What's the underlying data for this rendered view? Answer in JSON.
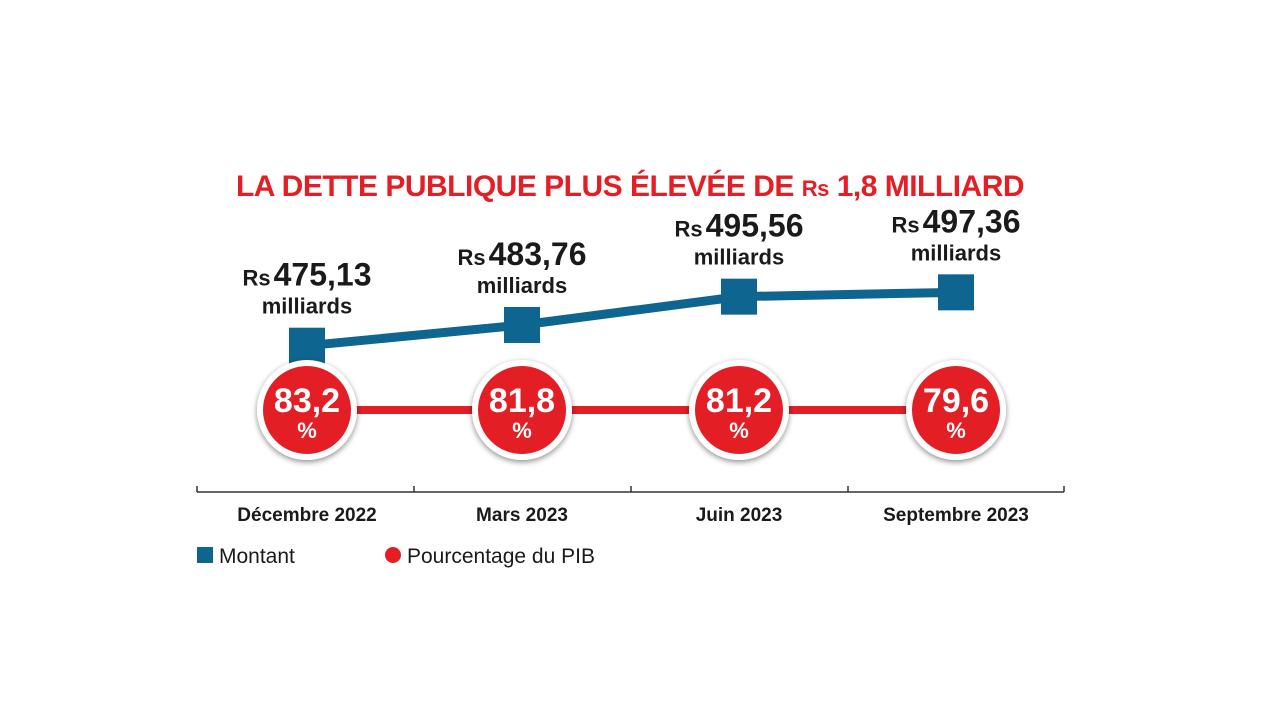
{
  "colors": {
    "title": "#e31e24",
    "amount": "#0e6590",
    "percent": "#e31e24",
    "text": "#1a1a1a",
    "axis": "#333333"
  },
  "chart_data": {
    "type": "line",
    "title": "LA DETTE PUBLIQUE PLUS ÉLEVÉE DE Rs 1,8 MILLIARD",
    "title_parts": {
      "before": "LA DETTE PUBLIQUE PLUS ÉLEVÉE DE ",
      "currency": "Rs",
      "after": " 1,8 MILLIARD"
    },
    "categories": [
      "Décembre 2022",
      "Mars 2023",
      "Juin 2023",
      "Septembre 2023"
    ],
    "series": [
      {
        "name": "Montant",
        "marker": "square",
        "currency": "Rs",
        "unit": "milliards",
        "values": [
          475.13,
          483.76,
          495.56,
          497.36
        ],
        "labels": [
          "475,13",
          "483,76",
          "495,56",
          "497,36"
        ]
      },
      {
        "name": "Pourcentage du PIB",
        "marker": "circle",
        "unit": "%",
        "values": [
          83.2,
          81.8,
          81.2,
          79.6
        ],
        "labels": [
          "83,2",
          "81,8",
          "81,2",
          "79,6"
        ]
      }
    ],
    "xlabel": "",
    "ylabel": "",
    "amount_ylim": [
      440,
      540
    ],
    "legend": "bottom-left"
  }
}
